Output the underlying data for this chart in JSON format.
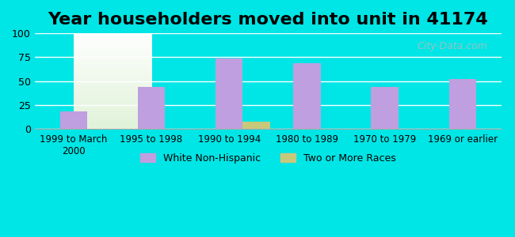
{
  "title": "Year householders moved into unit in 41174",
  "categories": [
    "1999 to March\n2000",
    "1995 to 1998",
    "1990 to 1994",
    "1980 to 1989",
    "1970 to 1979",
    "1969 or earlier"
  ],
  "white_non_hispanic": [
    18,
    44,
    74,
    69,
    44,
    52
  ],
  "two_or_more_races": [
    0,
    0,
    8,
    0,
    0,
    0
  ],
  "bar_color_white": "#bf9fdf",
  "bar_color_two": "#c8c87a",
  "ylim": [
    0,
    100
  ],
  "yticks": [
    0,
    25,
    50,
    75,
    100
  ],
  "background_outer": "#00e5e5",
  "title_fontsize": 16,
  "watermark": "City-Data.com"
}
